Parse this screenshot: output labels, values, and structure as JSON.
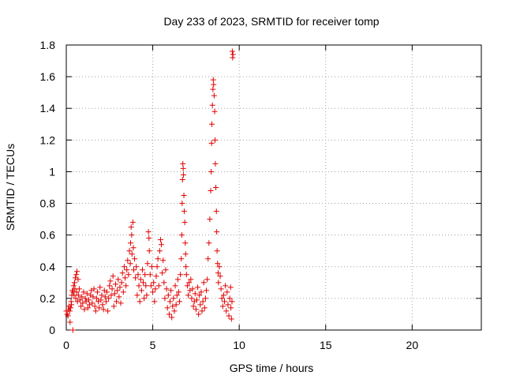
{
  "chart_data": {
    "type": "scatter",
    "title": "Day 233 of 2023, SRMTID for receiver tomp",
    "xlabel": "GPS time / hours",
    "ylabel": "SRMTID / TECUs",
    "xlim": [
      0,
      24
    ],
    "ylim": [
      0,
      1.8
    ],
    "xticks": [
      0,
      5,
      10,
      15,
      20
    ],
    "xtick_labels": [
      "0",
      "5",
      "10",
      "15",
      "20"
    ],
    "yticks": [
      0,
      0.2,
      0.4,
      0.6,
      0.8,
      1.0,
      1.2,
      1.4,
      1.6,
      1.8
    ],
    "ytick_labels": [
      "0",
      "0.2",
      "0.4",
      "0.6",
      "0.8",
      "1",
      "1.2",
      "1.4",
      "1.6",
      "1.8"
    ],
    "grid": true,
    "marker": "plus",
    "color": "#e00000",
    "series": [
      {
        "name": "SRMTID",
        "points": [
          [
            0.0,
            0.12
          ],
          [
            0.05,
            0.1
          ],
          [
            0.1,
            0.09
          ],
          [
            0.12,
            0.13
          ],
          [
            0.15,
            0.15
          ],
          [
            0.2,
            0.12
          ],
          [
            0.22,
            0.05
          ],
          [
            0.25,
            0.14
          ],
          [
            0.28,
            0.18
          ],
          [
            0.3,
            0.16
          ],
          [
            0.32,
            0.22
          ],
          [
            0.35,
            0.25
          ],
          [
            0.38,
            0.0
          ],
          [
            0.4,
            0.24
          ],
          [
            0.42,
            0.28
          ],
          [
            0.45,
            0.22
          ],
          [
            0.48,
            0.3
          ],
          [
            0.5,
            0.26
          ],
          [
            0.52,
            0.33
          ],
          [
            0.55,
            0.2
          ],
          [
            0.58,
            0.35
          ],
          [
            0.6,
            0.24
          ],
          [
            0.62,
            0.37
          ],
          [
            0.65,
            0.18
          ],
          [
            0.68,
            0.32
          ],
          [
            0.7,
            0.22
          ],
          [
            0.75,
            0.26
          ],
          [
            0.8,
            0.19
          ],
          [
            0.85,
            0.15
          ],
          [
            0.9,
            0.21
          ],
          [
            0.95,
            0.17
          ],
          [
            1.0,
            0.24
          ],
          [
            1.05,
            0.13
          ],
          [
            1.1,
            0.2
          ],
          [
            1.15,
            0.18
          ],
          [
            1.2,
            0.23
          ],
          [
            1.25,
            0.14
          ],
          [
            1.3,
            0.19
          ],
          [
            1.35,
            0.16
          ],
          [
            1.4,
            0.22
          ],
          [
            1.45,
            0.25
          ],
          [
            1.5,
            0.17
          ],
          [
            1.55,
            0.21
          ],
          [
            1.6,
            0.26
          ],
          [
            1.65,
            0.15
          ],
          [
            1.7,
            0.12
          ],
          [
            1.75,
            0.2
          ],
          [
            1.8,
            0.24
          ],
          [
            1.85,
            0.18
          ],
          [
            1.9,
            0.14
          ],
          [
            1.95,
            0.27
          ],
          [
            2.0,
            0.19
          ],
          [
            2.05,
            0.22
          ],
          [
            2.1,
            0.16
          ],
          [
            2.15,
            0.13
          ],
          [
            2.2,
            0.25
          ],
          [
            2.25,
            0.21
          ],
          [
            2.3,
            0.18
          ],
          [
            2.35,
            0.24
          ],
          [
            2.4,
            0.12
          ],
          [
            2.45,
            0.2
          ],
          [
            2.5,
            0.28
          ],
          [
            2.55,
            0.31
          ],
          [
            2.6,
            0.22
          ],
          [
            2.65,
            0.26
          ],
          [
            2.7,
            0.34
          ],
          [
            2.75,
            0.15
          ],
          [
            2.8,
            0.23
          ],
          [
            2.85,
            0.29
          ],
          [
            2.9,
            0.18
          ],
          [
            2.95,
            0.25
          ],
          [
            3.0,
            0.32
          ],
          [
            3.05,
            0.21
          ],
          [
            3.1,
            0.27
          ],
          [
            3.15,
            0.17
          ],
          [
            3.2,
            0.3
          ],
          [
            3.25,
            0.36
          ],
          [
            3.3,
            0.24
          ],
          [
            3.35,
            0.4
          ],
          [
            3.4,
            0.33
          ],
          [
            3.45,
            0.28
          ],
          [
            3.5,
            0.38
          ],
          [
            3.55,
            0.44
          ],
          [
            3.6,
            0.35
          ],
          [
            3.65,
            0.5
          ],
          [
            3.7,
            0.42
          ],
          [
            3.72,
            0.55
          ],
          [
            3.75,
            0.65
          ],
          [
            3.78,
            0.6
          ],
          [
            3.8,
            0.48
          ],
          [
            3.85,
            0.68
          ],
          [
            3.88,
            0.52
          ],
          [
            3.9,
            0.38
          ],
          [
            3.95,
            0.45
          ],
          [
            4.0,
            0.33
          ],
          [
            4.05,
            0.4
          ],
          [
            4.1,
            0.22
          ],
          [
            4.15,
            0.35
          ],
          [
            4.2,
            0.28
          ],
          [
            4.25,
            0.18
          ],
          [
            4.3,
            0.32
          ],
          [
            4.35,
            0.25
          ],
          [
            4.4,
            0.38
          ],
          [
            4.45,
            0.3
          ],
          [
            4.5,
            0.2
          ],
          [
            4.55,
            0.35
          ],
          [
            4.6,
            0.28
          ],
          [
            4.65,
            0.22
          ],
          [
            4.7,
            0.42
          ],
          [
            4.75,
            0.62
          ],
          [
            4.78,
            0.58
          ],
          [
            4.8,
            0.5
          ],
          [
            4.85,
            0.35
          ],
          [
            4.9,
            0.28
          ],
          [
            4.95,
            0.4
          ],
          [
            5.0,
            0.24
          ],
          [
            5.05,
            0.3
          ],
          [
            5.1,
            0.18
          ],
          [
            5.15,
            0.26
          ],
          [
            5.2,
            0.34
          ],
          [
            5.25,
            0.4
          ],
          [
            5.3,
            0.45
          ],
          [
            5.35,
            0.28
          ],
          [
            5.4,
            0.5
          ],
          [
            5.45,
            0.57
          ],
          [
            5.5,
            0.54
          ],
          [
            5.55,
            0.36
          ],
          [
            5.6,
            0.44
          ],
          [
            5.65,
            0.3
          ],
          [
            5.7,
            0.2
          ],
          [
            5.75,
            0.38
          ],
          [
            5.8,
            0.26
          ],
          [
            5.85,
            0.14
          ],
          [
            5.9,
            0.22
          ],
          [
            5.95,
            0.1
          ],
          [
            6.0,
            0.18
          ],
          [
            6.05,
            0.25
          ],
          [
            6.1,
            0.08
          ],
          [
            6.15,
            0.15
          ],
          [
            6.2,
            0.2
          ],
          [
            6.25,
            0.12
          ],
          [
            6.3,
            0.28
          ],
          [
            6.35,
            0.16
          ],
          [
            6.4,
            0.22
          ],
          [
            6.45,
            0.32
          ],
          [
            6.5,
            0.24
          ],
          [
            6.55,
            0.18
          ],
          [
            6.6,
            0.35
          ],
          [
            6.65,
            0.45
          ],
          [
            6.68,
            0.6
          ],
          [
            6.7,
            0.8
          ],
          [
            6.72,
            0.95
          ],
          [
            6.74,
            1.05
          ],
          [
            6.76,
            1.02
          ],
          [
            6.78,
            0.98
          ],
          [
            6.8,
            0.85
          ],
          [
            6.82,
            0.75
          ],
          [
            6.85,
            0.68
          ],
          [
            6.88,
            0.55
          ],
          [
            6.9,
            0.48
          ],
          [
            6.92,
            0.4
          ],
          [
            6.95,
            0.35
          ],
          [
            7.0,
            0.28
          ],
          [
            7.05,
            0.22
          ],
          [
            7.1,
            0.3
          ],
          [
            7.15,
            0.25
          ],
          [
            7.2,
            0.32
          ],
          [
            7.25,
            0.2
          ],
          [
            7.3,
            0.26
          ],
          [
            7.35,
            0.15
          ],
          [
            7.4,
            0.18
          ],
          [
            7.45,
            0.23
          ],
          [
            7.5,
            0.13
          ],
          [
            7.55,
            0.19
          ],
          [
            7.6,
            0.27
          ],
          [
            7.65,
            0.1
          ],
          [
            7.7,
            0.22
          ],
          [
            7.75,
            0.16
          ],
          [
            7.8,
            0.24
          ],
          [
            7.85,
            0.12
          ],
          [
            7.9,
            0.18
          ],
          [
            7.95,
            0.3
          ],
          [
            8.0,
            0.14
          ],
          [
            8.05,
            0.2
          ],
          [
            8.1,
            0.25
          ],
          [
            8.15,
            0.32
          ],
          [
            8.2,
            0.45
          ],
          [
            8.25,
            0.55
          ],
          [
            8.3,
            0.7
          ],
          [
            8.35,
            0.88
          ],
          [
            8.38,
            1.0
          ],
          [
            8.4,
            1.18
          ],
          [
            8.42,
            1.3
          ],
          [
            8.45,
            1.42
          ],
          [
            8.48,
            1.52
          ],
          [
            8.5,
            1.58
          ],
          [
            8.52,
            1.55
          ],
          [
            8.55,
            1.48
          ],
          [
            8.58,
            1.38
          ],
          [
            8.6,
            1.2
          ],
          [
            8.62,
            1.05
          ],
          [
            8.65,
            0.9
          ],
          [
            8.68,
            0.75
          ],
          [
            8.7,
            0.62
          ],
          [
            8.72,
            0.5
          ],
          [
            8.75,
            0.42
          ],
          [
            8.78,
            0.36
          ],
          [
            8.8,
            0.3
          ],
          [
            8.85,
            0.4
          ],
          [
            8.9,
            0.34
          ],
          [
            8.95,
            0.26
          ],
          [
            9.0,
            0.2
          ],
          [
            9.05,
            0.15
          ],
          [
            9.1,
            0.22
          ],
          [
            9.15,
            0.18
          ],
          [
            9.2,
            0.28
          ],
          [
            9.25,
            0.12
          ],
          [
            9.3,
            0.24
          ],
          [
            9.35,
            0.16
          ],
          [
            9.4,
            0.09
          ],
          [
            9.45,
            0.2
          ],
          [
            9.5,
            0.27
          ],
          [
            9.52,
            0.14
          ],
          [
            9.55,
            0.07
          ],
          [
            9.58,
            0.18
          ],
          [
            9.6,
            1.76
          ],
          [
            9.62,
            1.72
          ],
          [
            9.64,
            1.74
          ]
        ]
      }
    ]
  }
}
